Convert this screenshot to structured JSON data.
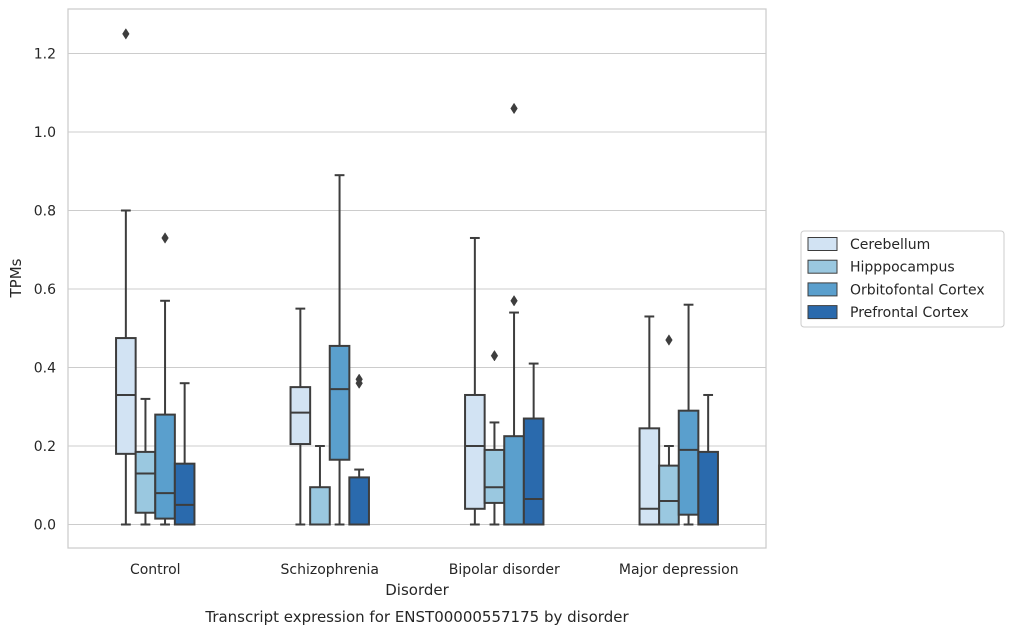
{
  "chart_data": {
    "type": "box",
    "title": "Transcript expression for ENST00000557175 by disorder",
    "xlabel": "Disorder",
    "ylabel": "TPMs",
    "ylim": [
      -0.06,
      1.31
    ],
    "yticks": [
      "0.0",
      "0.2",
      "0.4",
      "0.6",
      "0.8",
      "1.0",
      "1.2"
    ],
    "grid": true,
    "legend_position": "right",
    "categories": [
      "Control",
      "Schizophrenia",
      "Bipolar disorder",
      "Major depression"
    ],
    "series": [
      {
        "name": "Cerebellum",
        "color": "#d2e3f3",
        "boxes": [
          {
            "whisker_low": 0.0,
            "q1": 0.18,
            "median": 0.33,
            "q3": 0.475,
            "whisker_high": 0.8,
            "outliers": [
              1.25
            ]
          },
          {
            "whisker_low": 0.0,
            "q1": 0.205,
            "median": 0.285,
            "q3": 0.35,
            "whisker_high": 0.55,
            "outliers": []
          },
          {
            "whisker_low": 0.0,
            "q1": 0.04,
            "median": 0.2,
            "q3": 0.33,
            "whisker_high": 0.73,
            "outliers": []
          },
          {
            "whisker_low": 0.0,
            "q1": 0.0,
            "median": 0.04,
            "q3": 0.245,
            "whisker_high": 0.53,
            "outliers": []
          }
        ]
      },
      {
        "name": "Hipppocampus",
        "color": "#9ac8e0",
        "boxes": [
          {
            "whisker_low": 0.0,
            "q1": 0.03,
            "median": 0.13,
            "q3": 0.185,
            "whisker_high": 0.32,
            "outliers": []
          },
          {
            "whisker_low": 0.0,
            "q1": 0.0,
            "median": 0.0,
            "q3": 0.095,
            "whisker_high": 0.2,
            "outliers": []
          },
          {
            "whisker_low": 0.0,
            "q1": 0.055,
            "median": 0.095,
            "q3": 0.19,
            "whisker_high": 0.26,
            "outliers": [
              0.43
            ]
          },
          {
            "whisker_low": 0.0,
            "q1": 0.0,
            "median": 0.06,
            "q3": 0.15,
            "whisker_high": 0.2,
            "outliers": [
              0.47
            ]
          }
        ]
      },
      {
        "name": "Orbitofontal Cortex",
        "color": "#5a9fcd",
        "boxes": [
          {
            "whisker_low": 0.0,
            "q1": 0.015,
            "median": 0.08,
            "q3": 0.28,
            "whisker_high": 0.57,
            "outliers": [
              0.73
            ]
          },
          {
            "whisker_low": 0.0,
            "q1": 0.165,
            "median": 0.345,
            "q3": 0.455,
            "whisker_high": 0.89,
            "outliers": []
          },
          {
            "whisker_low": 0.0,
            "q1": 0.0,
            "median": 0.0,
            "q3": 0.225,
            "whisker_high": 0.54,
            "outliers": [
              0.57,
              1.06
            ]
          },
          {
            "whisker_low": 0.0,
            "q1": 0.025,
            "median": 0.19,
            "q3": 0.29,
            "whisker_high": 0.56,
            "outliers": []
          }
        ]
      },
      {
        "name": "Prefrontal Cortex",
        "color": "#2a6aad",
        "boxes": [
          {
            "whisker_low": 0.0,
            "q1": 0.0,
            "median": 0.05,
            "q3": 0.155,
            "whisker_high": 0.36,
            "outliers": []
          },
          {
            "whisker_low": 0.0,
            "q1": 0.0,
            "median": 0.0,
            "q3": 0.12,
            "whisker_high": 0.14,
            "outliers": [
              0.36,
              0.37
            ]
          },
          {
            "whisker_low": 0.0,
            "q1": 0.0,
            "median": 0.065,
            "q3": 0.27,
            "whisker_high": 0.41,
            "outliers": []
          },
          {
            "whisker_low": 0.0,
            "q1": 0.0,
            "median": 0.0,
            "q3": 0.185,
            "whisker_high": 0.33,
            "outliers": []
          }
        ]
      }
    ]
  }
}
